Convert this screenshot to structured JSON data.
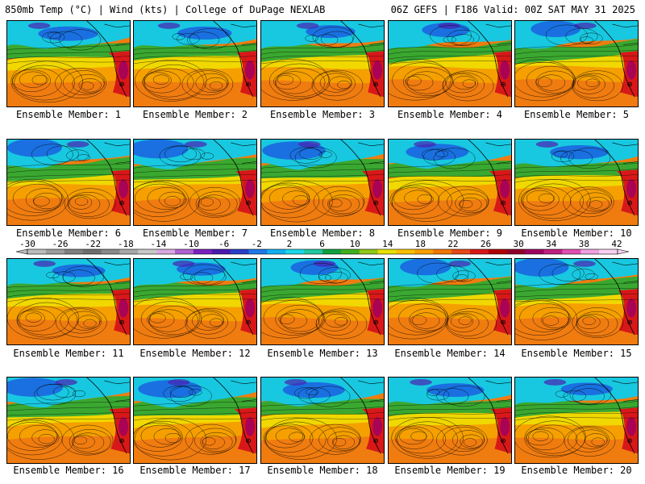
{
  "header": {
    "left": "850mb Temp (°C) | Wind (kts) | College of DuPage NEXLAB",
    "right": "06Z GEFS | F186 Valid: 00Z SAT MAY 31 2025"
  },
  "members": [
    {
      "label": "Ensemble Member: 1"
    },
    {
      "label": "Ensemble Member: 2"
    },
    {
      "label": "Ensemble Member: 3"
    },
    {
      "label": "Ensemble Member: 4"
    },
    {
      "label": "Ensemble Member: 5"
    },
    {
      "label": "Ensemble Member: 6"
    },
    {
      "label": "Ensemble Member: 7"
    },
    {
      "label": "Ensemble Member: 8"
    },
    {
      "label": "Ensemble Member: 9"
    },
    {
      "label": "Ensemble Member: 10"
    },
    {
      "label": "Ensemble Member: 11"
    },
    {
      "label": "Ensemble Member: 12"
    },
    {
      "label": "Ensemble Member: 13"
    },
    {
      "label": "Ensemble Member: 14"
    },
    {
      "label": "Ensemble Member: 15"
    },
    {
      "label": "Ensemble Member: 16"
    },
    {
      "label": "Ensemble Member: 17"
    },
    {
      "label": "Ensemble Member: 18"
    },
    {
      "label": "Ensemble Member: 19"
    },
    {
      "label": "Ensemble Member: 20"
    }
  ],
  "colorbar": {
    "labels": [
      "-30",
      "-26",
      "-22",
      "-18",
      "-14",
      "-10",
      "-6",
      "-2",
      "2",
      "6",
      "10",
      "14",
      "18",
      "22",
      "26",
      "30",
      "34",
      "38",
      "42"
    ],
    "colors": [
      "#bcbcbc",
      "#9e9e9e",
      "#808080",
      "#6e6e6e",
      "#8a8a8a",
      "#a8a8a8",
      "#c8c8c8",
      "#d8a8e0",
      "#b060d0",
      "#7a20c0",
      "#4a18b0",
      "#2a3ec8",
      "#1e78e8",
      "#10b0f0",
      "#18d8e8",
      "#20c8a0",
      "#10a040",
      "#40b020",
      "#90c818",
      "#e8e000",
      "#f8c000",
      "#f8a000",
      "#f07800",
      "#e84818",
      "#d81818",
      "#b00000",
      "#900028",
      "#a00060",
      "#c02080",
      "#e050b0",
      "#f0a0e0",
      "#f8d0f0"
    ]
  }
}
